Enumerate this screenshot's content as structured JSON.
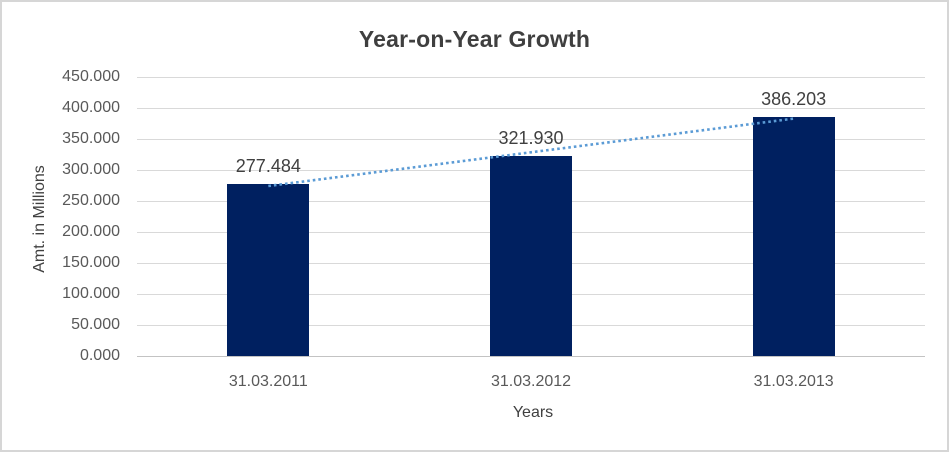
{
  "frame": {
    "background": "#ffffff",
    "border_color": "#d6d6d6"
  },
  "chart_data": {
    "type": "bar",
    "title": "Year-on-Year Growth",
    "xlabel": "Years",
    "ylabel": "Amt. in Millions",
    "categories": [
      "31.03.2011",
      "31.03.2012",
      "31.03.2013"
    ],
    "values": [
      277.484,
      321.93,
      386.203
    ],
    "data_labels": [
      "277.484",
      "321.930",
      "386.203"
    ],
    "ylim": [
      0,
      450
    ],
    "ytick_step": 50,
    "ytick_labels": [
      "0.000",
      "50.000",
      "100.000",
      "150.000",
      "200.000",
      "250.000",
      "300.000",
      "350.000",
      "400.000",
      "450.000"
    ],
    "grid": true,
    "legend": "none",
    "bar_color": "#002060",
    "trendline": {
      "type": "linear",
      "style": "dotted",
      "color": "#5B9BD5"
    },
    "colors": {
      "gridline": "#d9d9d9",
      "axis_line": "#c3c3c3",
      "title": "#3f3f3f",
      "tick_label": "#595959",
      "data_label": "#404040",
      "axis_title": "#404040"
    }
  }
}
